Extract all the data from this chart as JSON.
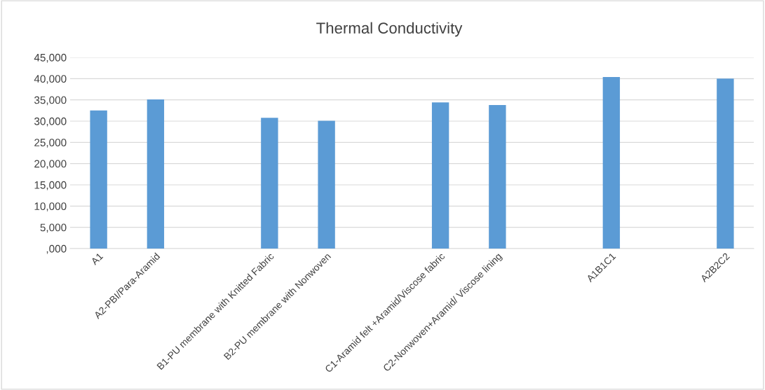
{
  "chart_data": {
    "type": "bar",
    "title": "Thermal Conductivity",
    "categories": [
      "A1",
      "A2-PBI/Para-Aramid",
      null,
      "B1-PU membrane with Knitted Fabric",
      "B2-PU membrane with Nonwoven",
      null,
      "C1-Aramid felt +Aramid/Viscose fabric",
      "C2-Nonwoven+Aramid/ Viscose lining",
      null,
      "A1B1C1",
      null,
      "A2B2C2"
    ],
    "values": [
      32500,
      35100,
      null,
      30800,
      30100,
      null,
      34400,
      33800,
      null,
      40400,
      null,
      40000
    ],
    "color": "#5b9bd5",
    "ylim": [
      0,
      45000
    ],
    "yticks": [
      {
        "value": 0,
        "label": ",000"
      },
      {
        "value": 5000,
        "label": "5,000"
      },
      {
        "value": 10000,
        "label": "10,000"
      },
      {
        "value": 15000,
        "label": "15,000"
      },
      {
        "value": 20000,
        "label": "20,000"
      },
      {
        "value": 25000,
        "label": "25,000"
      },
      {
        "value": 30000,
        "label": "30,000"
      },
      {
        "value": 35000,
        "label": "35,000"
      },
      {
        "value": 40000,
        "label": "40,000"
      },
      {
        "value": 45000,
        "label": "45,000"
      }
    ],
    "grid": "y"
  }
}
